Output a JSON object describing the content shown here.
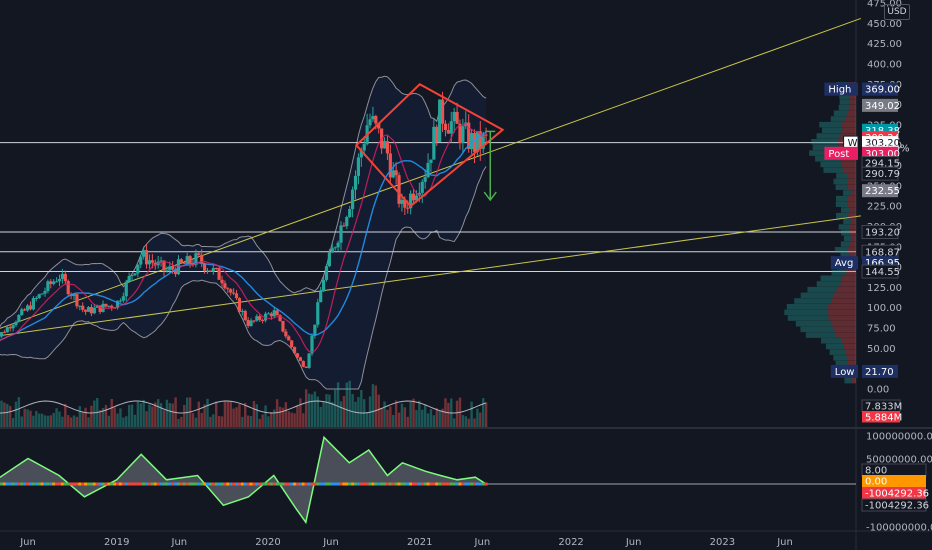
{
  "currency": "USD",
  "colors": {
    "up": "#26a69a",
    "down": "#ef5350",
    "bg": "#131722",
    "trend": "#c8c44a",
    "bb": "#8d8f99",
    "ma1": "#2196f3",
    "ma2": "#e91e63",
    "diamond": "#f44336",
    "arrow": "#4caf50",
    "osc_up": "#7cfc7c"
  },
  "chart_data": {
    "type": "candlestick",
    "price_axis": {
      "min": 0,
      "max": 475,
      "ticks": [
        0,
        25,
        50,
        75,
        100,
        125,
        150,
        175,
        200,
        225,
        250,
        275,
        300,
        325,
        350,
        375,
        400,
        425,
        450,
        475
      ]
    },
    "tick_labels": [
      "0.00",
      "25.00",
      "50.00",
      "75.00",
      "100.00",
      "125.00",
      "150.00",
      "175.00",
      "200.00",
      "225.00",
      "250.00",
      "275.00",
      "300.00",
      "325.00",
      "350.00",
      "375.00",
      "400.00",
      "425.00",
      "450.00",
      "475.00"
    ],
    "time_axis": {
      "labels": [
        "Jun",
        "2019",
        "Jun",
        "2020",
        "Jun",
        "2021",
        "Jun",
        "2022",
        "Jun",
        "2023",
        "Jun"
      ],
      "dates": [
        "2018-06-01",
        "2019-01-01",
        "2019-06-01",
        "2020-01-01",
        "2020-06-01",
        "2021-01-01",
        "2021-06-01",
        "2022-01-01",
        "2022-06-01",
        "2023-01-01",
        "2023-06-01"
      ]
    },
    "price_path": [
      [
        "2018-03-01",
        55
      ],
      [
        "2018-06-01",
        100
      ],
      [
        "2018-08-15",
        140
      ],
      [
        "2018-10-15",
        95
      ],
      [
        "2019-01-01",
        105
      ],
      [
        "2019-03-01",
        165
      ],
      [
        "2019-05-01",
        145
      ],
      [
        "2019-07-15",
        160
      ],
      [
        "2019-09-15",
        135
      ],
      [
        "2019-11-15",
        80
      ],
      [
        "2020-01-15",
        95
      ],
      [
        "2020-03-10",
        40
      ],
      [
        "2020-04-01",
        25
      ],
      [
        "2020-05-15",
        140
      ],
      [
        "2020-07-15",
        230
      ],
      [
        "2020-08-31",
        335
      ],
      [
        "2020-10-15",
        290
      ],
      [
        "2020-11-20",
        220
      ],
      [
        "2021-01-15",
        270
      ],
      [
        "2021-02-20",
        340
      ],
      [
        "2021-04-01",
        320
      ],
      [
        "2021-05-15",
        300
      ],
      [
        "2021-06-10",
        305
      ]
    ],
    "volume_labels": [
      "7.833M",
      "5.884M"
    ],
    "trendlines": [
      {
        "from": [
          "2018-02-01",
          65
        ],
        "to": [
          "2023-12-01",
          456
        ]
      },
      {
        "from": [
          "2018-02-01",
          62
        ],
        "to": [
          "2023-12-01",
          213
        ]
      }
    ],
    "horizontal_lines": [
      303.2,
      193.2,
      168.87,
      144.55
    ],
    "diamond": {
      "left": [
        "2020-08-01",
        300
      ],
      "top": [
        "2021-01-01",
        375
      ],
      "right": [
        "2021-07-20",
        319
      ],
      "bottom": [
        "2020-12-10",
        225
      ]
    },
    "projection_arrow": {
      "date": "2021-06-20",
      "from": 317,
      "to": 232.55
    },
    "price_labels": [
      {
        "name": "High",
        "value": "369.00",
        "price": 369,
        "style": "navy"
      },
      {
        "name": "",
        "value": "349.02",
        "price": 349.02,
        "style": "gray"
      },
      {
        "name": "",
        "value": "318.38",
        "price": 318.38,
        "style": "teal"
      },
      {
        "name": "",
        "value": "309.24",
        "price": 309.24,
        "style": "red"
      },
      {
        "name": "W",
        "value": "303.20",
        "price": 303.2,
        "style": "white"
      },
      {
        "name": "",
        "value": "348.99%",
        "price": 296.5,
        "style": "none"
      },
      {
        "name": "Post",
        "value": "303.00",
        "price": 290.0,
        "style": "pink"
      },
      {
        "name": "",
        "value": "294.15",
        "price": 278,
        "style": "dark"
      },
      {
        "name": "",
        "value": "290.79",
        "price": 265,
        "style": "dark"
      },
      {
        "name": "",
        "value": "232.55",
        "price": 244,
        "style": "gray"
      },
      {
        "name": "",
        "value": "193.20",
        "price": 193.2,
        "style": "dark"
      },
      {
        "name": "",
        "value": "168.87",
        "price": 168.87,
        "style": "dark"
      },
      {
        "name": "Avg",
        "value": "166.95",
        "price": 155.5,
        "style": "navy"
      },
      {
        "name": "",
        "value": "144.55",
        "price": 144.55,
        "style": "dark"
      },
      {
        "name": "Low",
        "value": "21.70",
        "price": 21.7,
        "style": "navy"
      }
    ],
    "oscillator": {
      "ticks": [
        "100000000.00",
        "50000000.00",
        "-100000000.00"
      ],
      "labels": [
        {
          "value": "8.00",
          "style": "dark"
        },
        {
          "value": "0.00",
          "style": "orange"
        },
        {
          "value": "-1004292.36",
          "style": "red"
        },
        {
          "value": "-1004292.36",
          "style": "dark"
        }
      ],
      "peaks": [
        [
          "2018-03-01",
          0
        ],
        [
          "2018-06-01",
          30
        ],
        [
          "2018-08-15",
          10
        ],
        [
          "2018-10-15",
          -15
        ],
        [
          "2019-01-01",
          5
        ],
        [
          "2019-03-01",
          35
        ],
        [
          "2019-05-01",
          5
        ],
        [
          "2019-07-15",
          10
        ],
        [
          "2019-09-15",
          -25
        ],
        [
          "2019-11-15",
          -15
        ],
        [
          "2020-01-15",
          10
        ],
        [
          "2020-03-10",
          -30
        ],
        [
          "2020-04-01",
          -45
        ],
        [
          "2020-05-15",
          55
        ],
        [
          "2020-07-15",
          25
        ],
        [
          "2020-08-31",
          40
        ],
        [
          "2020-10-15",
          10
        ],
        [
          "2020-11-20",
          25
        ],
        [
          "2021-01-15",
          15
        ],
        [
          "2021-02-20",
          10
        ],
        [
          "2021-04-01",
          5
        ],
        [
          "2021-05-15",
          8
        ],
        [
          "2021-06-10",
          0
        ]
      ]
    }
  }
}
